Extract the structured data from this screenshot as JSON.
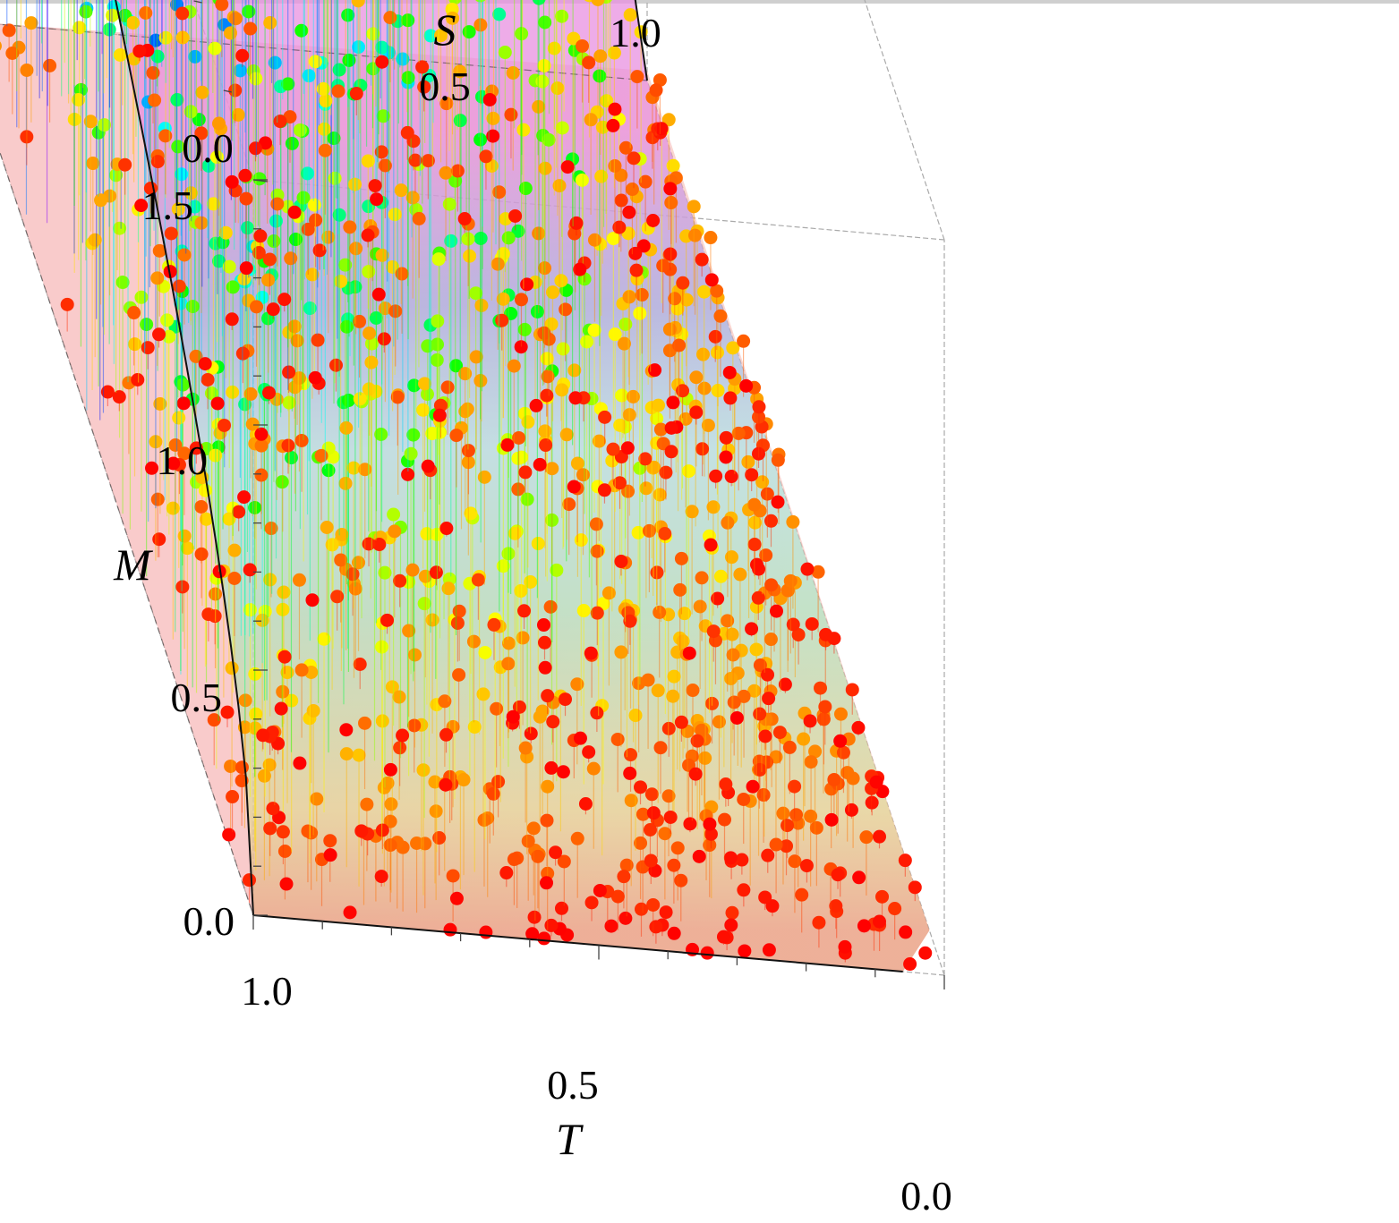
{
  "chart_data": {
    "type": "scatter",
    "projection": "3d",
    "axes": {
      "x": {
        "label": "T",
        "ticks": [
          "0.0",
          "0.5",
          "1.0"
        ],
        "range": [
          0,
          1
        ]
      },
      "y": {
        "label": "S",
        "ticks": [
          "0.0",
          "0.5",
          "1.0"
        ],
        "range": [
          0,
          1
        ]
      },
      "z": {
        "label": "M",
        "ticks": [
          "0.0",
          "0.5",
          "1.0",
          "1.5"
        ],
        "range": [
          0,
          1.5
        ]
      }
    },
    "surface": "translucent upper boundary M = f(T,S) with M = 1.5 at T = 0, S = 1 and M = 0 along the T + S = 1 edge",
    "points": "about 2000 random samples under the surface, each with a drop line to the base plane",
    "color_scale": {
      "variable": "M",
      "stops": [
        "#ff0000",
        "#ff9900",
        "#ffff00",
        "#00ff00",
        "#00ffff",
        "#0066ff",
        "#0000ff",
        "#aa00ff",
        "#ff00aa"
      ]
    },
    "grid": false,
    "legend": "none"
  }
}
